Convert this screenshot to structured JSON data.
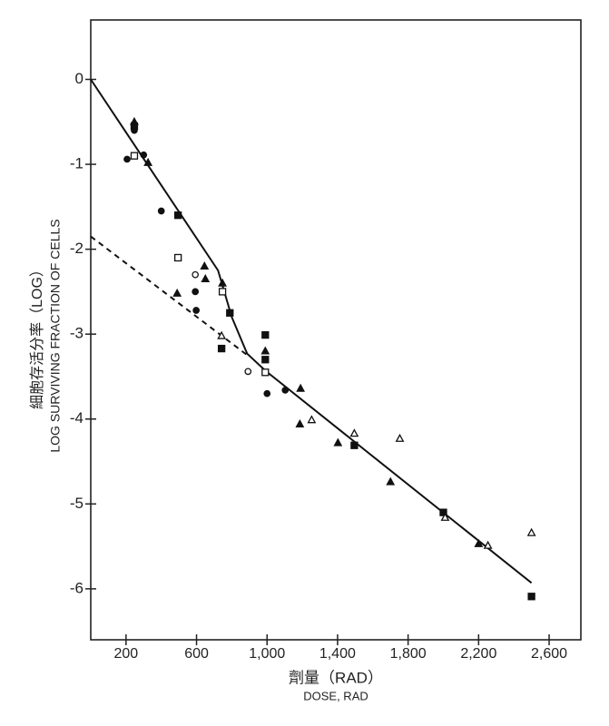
{
  "chart_data": {
    "type": "scatter",
    "y_label": "LOG SURVIVING FRACTION OF CELLS",
    "y_label_zh": "細胞存活分率（LOG）",
    "x_label": "DOSE, RAD",
    "x_label_zh": "劑量（RAD）",
    "color": "#111111",
    "xlim": [
      0,
      2780
    ],
    "ylim": [
      -6.6,
      0.7
    ],
    "xticks": [
      200,
      600,
      {
        "value": 1000,
        "label": "1,000"
      },
      {
        "value": 1400,
        "label": "1,400"
      },
      {
        "value": 1800,
        "label": "1,800"
      },
      {
        "value": 2200,
        "label": "2,200"
      },
      {
        "value": 2600,
        "label": "2,600"
      }
    ],
    "yticks": [
      0,
      -1,
      -2,
      -3,
      -4,
      -5,
      -6
    ],
    "x": [
      247,
      247,
      247,
      206,
      247,
      300,
      325,
      400,
      495,
      495,
      593,
      645,
      650,
      593,
      490,
      747,
      747,
      598,
      789,
      742,
      742,
      892,
      990,
      990,
      990,
      990,
      1000,
      1103,
      1190,
      1186,
      1253,
      1402,
      1495,
      1495,
      1753,
      1700,
      2000,
      2010,
      2200,
      2253,
      2500,
      2500
    ],
    "values": [
      -0.55,
      -0.6,
      -0.5,
      -0.94,
      -0.9,
      -0.89,
      -0.98,
      -1.55,
      -1.6,
      -2.1,
      -2.3,
      -2.2,
      -2.35,
      -2.5,
      -2.52,
      -2.5,
      -2.4,
      -2.72,
      -2.75,
      -3.02,
      -3.17,
      -3.44,
      -3.01,
      -3.2,
      -3.3,
      -3.45,
      -3.7,
      -3.66,
      -3.64,
      -4.06,
      -4.01,
      -4.28,
      -4.17,
      -4.31,
      -4.23,
      -4.74,
      -5.1,
      -5.16,
      -5.47,
      -5.49,
      -5.34,
      -6.09
    ],
    "markers": [
      "square",
      "circle",
      "triangle",
      "circle",
      "square-open",
      "circle",
      "triangle",
      "circle",
      "square",
      "square-open",
      "circle-open",
      "triangle",
      "triangle",
      "circle",
      "triangle",
      "square-open",
      "triangle",
      "circle",
      "square",
      "triangle-open",
      "square",
      "circle-open",
      "square",
      "triangle",
      "square",
      "square-open",
      "circle",
      "circle",
      "triangle",
      "triangle",
      "triangle-open",
      "triangle",
      "triangle-open",
      "square",
      "triangle-open",
      "triangle",
      "square",
      "triangle-open",
      "triangle",
      "triangle-open",
      "triangle-open",
      "square"
    ],
    "lines": [
      {
        "style": "solid",
        "x": [
          0,
          722,
          800,
          887,
          990,
          2500
        ],
        "values": [
          0,
          -2.25,
          -2.8,
          -3.23,
          -3.43,
          -5.93
        ]
      },
      {
        "style": "dashed",
        "x": [
          0,
          902
        ],
        "values": [
          -1.85,
          -3.27
        ]
      }
    ]
  }
}
